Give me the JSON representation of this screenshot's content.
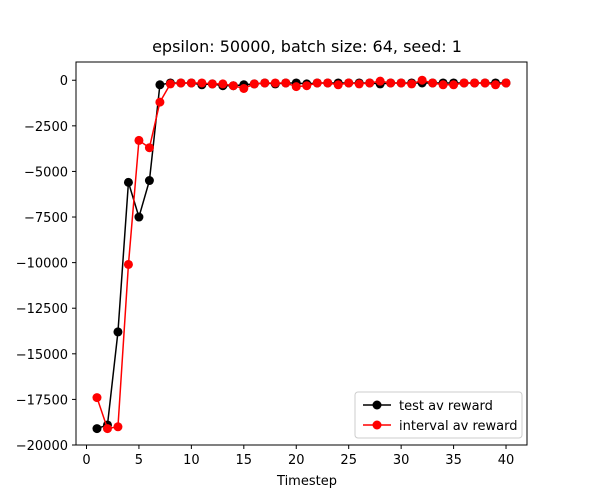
{
  "chart_data": {
    "type": "line",
    "title": "epsilon: 50000, batch size: 64, seed: 1",
    "xlabel": "Timestep",
    "ylabel": "",
    "xlim": [
      -1,
      42
    ],
    "ylim": [
      -20000,
      1000
    ],
    "xticks": [
      0,
      5,
      10,
      15,
      20,
      25,
      30,
      35,
      40
    ],
    "yticks": [
      0,
      -2500,
      -5000,
      -7500,
      -10000,
      -12500,
      -15000,
      -17500,
      -20000
    ],
    "legend_position": "lower-right",
    "grid": false,
    "x": [
      1,
      2,
      3,
      4,
      5,
      6,
      7,
      8,
      9,
      10,
      11,
      12,
      13,
      14,
      15,
      16,
      17,
      18,
      19,
      20,
      21,
      22,
      23,
      24,
      25,
      26,
      27,
      28,
      29,
      30,
      31,
      32,
      33,
      34,
      35,
      36,
      37,
      38,
      39,
      40
    ],
    "series": [
      {
        "name": "test av reward",
        "color": "#000000",
        "values": [
          -19100,
          -18900,
          -13800,
          -5600,
          -7500,
          -5500,
          -250,
          -150,
          -150,
          -150,
          -250,
          -200,
          -300,
          -300,
          -250,
          -200,
          -150,
          -200,
          -150,
          -150,
          -200,
          -150,
          -150,
          -150,
          -150,
          -150,
          -150,
          -200,
          -150,
          -150,
          -150,
          -150,
          -150,
          -150,
          -150,
          -150,
          -150,
          -150,
          -150,
          -150
        ]
      },
      {
        "name": "interval av reward",
        "color": "#ff0000",
        "values": [
          -17400,
          -19100,
          -19000,
          -10100,
          -3300,
          -3700,
          -1200,
          -200,
          -150,
          -150,
          -150,
          -200,
          -200,
          -300,
          -450,
          -200,
          -150,
          -150,
          -150,
          -350,
          -300,
          -150,
          -150,
          -250,
          -150,
          -200,
          -150,
          -50,
          -150,
          -150,
          -200,
          0,
          -150,
          -250,
          -250,
          -150,
          -150,
          -150,
          -250,
          -150
        ]
      }
    ]
  }
}
